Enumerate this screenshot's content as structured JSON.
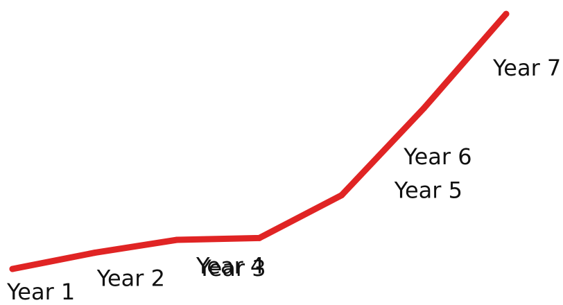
{
  "chart_data": {
    "type": "line",
    "categories": [
      "Year 1",
      "Year 2",
      "Year 3",
      "Year 4",
      "Year 5",
      "Year 6",
      "Year 7"
    ],
    "values": [
      0,
      6.3,
      11.3,
      12,
      28.6,
      62.3,
      98.9
    ],
    "ylim": [
      0,
      100
    ],
    "grid": false,
    "axes_visible": false,
    "line_color": "#e02424"
  }
}
